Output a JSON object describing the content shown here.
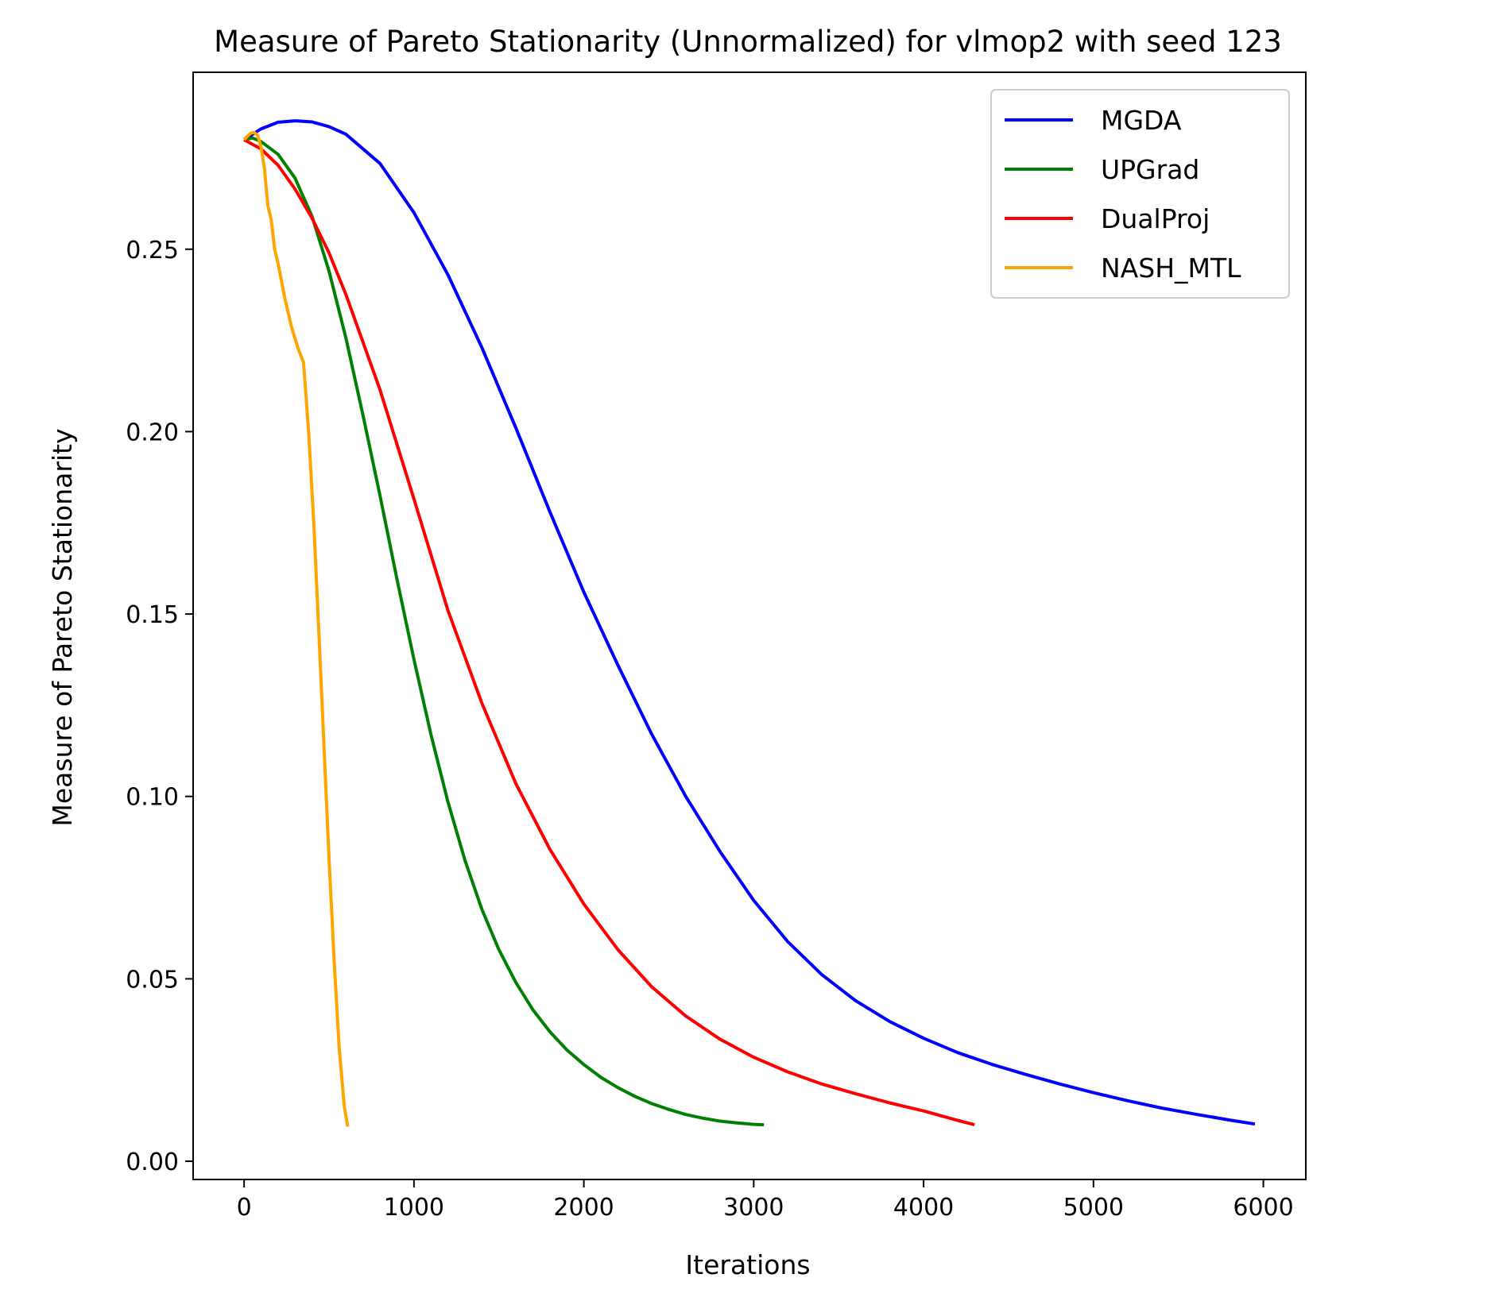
{
  "chart_data": {
    "type": "line",
    "title": "Measure of Pareto Stationarity (Unnormalized) for vlmop2 with seed 123",
    "xlabel": "Iterations",
    "ylabel": "Measure of Pareto Stationarity",
    "xlim": [
      -300,
      6250
    ],
    "ylim": [
      -0.005,
      0.2985
    ],
    "xticks": [
      0,
      1000,
      2000,
      3000,
      4000,
      5000,
      6000
    ],
    "xtick_labels": [
      "0",
      "1000",
      "2000",
      "3000",
      "4000",
      "5000",
      "6000"
    ],
    "yticks": [
      0.0,
      0.05,
      0.1,
      0.15,
      0.2,
      0.25
    ],
    "ytick_labels": [
      "0.00",
      "0.05",
      "0.10",
      "0.15",
      "0.20",
      "0.25"
    ],
    "grid": false,
    "legend_position": "top-right",
    "series": [
      {
        "name": "MGDA",
        "color": "#0000ff",
        "x": [
          0,
          100,
          200,
          300,
          400,
          500,
          600,
          800,
          1000,
          1200,
          1400,
          1600,
          1800,
          2000,
          2200,
          2400,
          2600,
          2800,
          3000,
          3200,
          3400,
          3600,
          3800,
          4000,
          4200,
          4400,
          4600,
          4800,
          5000,
          5200,
          5400,
          5600,
          5800,
          5950
        ],
        "y": [
          0.28,
          0.283,
          0.2848,
          0.2852,
          0.2849,
          0.2836,
          0.2815,
          0.2735,
          0.26,
          0.243,
          0.223,
          0.201,
          0.178,
          0.156,
          0.136,
          0.117,
          0.1,
          0.085,
          0.0715,
          0.0602,
          0.0512,
          0.044,
          0.0383,
          0.0337,
          0.0298,
          0.0266,
          0.0238,
          0.0212,
          0.0188,
          0.0166,
          0.0146,
          0.0129,
          0.0113,
          0.0102
        ]
      },
      {
        "name": "UPGrad",
        "color": "#008000",
        "x": [
          0,
          50,
          100,
          200,
          300,
          400,
          500,
          600,
          700,
          800,
          900,
          1000,
          1100,
          1200,
          1300,
          1400,
          1500,
          1600,
          1700,
          1800,
          1900,
          2000,
          2100,
          2200,
          2300,
          2400,
          2500,
          2600,
          2700,
          2800,
          2900,
          3000,
          3060
        ],
        "y": [
          0.28,
          0.2805,
          0.2795,
          0.276,
          0.2695,
          0.259,
          0.244,
          0.2255,
          0.2045,
          0.1825,
          0.1595,
          0.1375,
          0.117,
          0.0985,
          0.0825,
          0.069,
          0.058,
          0.049,
          0.0415,
          0.0355,
          0.0305,
          0.0265,
          0.023,
          0.0202,
          0.0178,
          0.0158,
          0.0142,
          0.0128,
          0.0118,
          0.011,
          0.0105,
          0.0101,
          0.01
        ]
      },
      {
        "name": "DualProj",
        "color": "#ff0000",
        "x": [
          0,
          100,
          200,
          300,
          400,
          500,
          600,
          800,
          1000,
          1200,
          1400,
          1600,
          1800,
          2000,
          2200,
          2400,
          2600,
          2800,
          3000,
          3200,
          3400,
          3600,
          3800,
          4000,
          4200,
          4300
        ],
        "y": [
          0.28,
          0.2775,
          0.273,
          0.2665,
          0.2585,
          0.249,
          0.2375,
          0.2115,
          0.1815,
          0.151,
          0.1255,
          0.1035,
          0.0855,
          0.0705,
          0.058,
          0.0478,
          0.0398,
          0.0335,
          0.0285,
          0.0245,
          0.0212,
          0.0185,
          0.016,
          0.0138,
          0.0112,
          0.01
        ]
      },
      {
        "name": "NASH_MTL",
        "color": "#ffa500",
        "x": [
          0,
          20,
          40,
          60,
          80,
          100,
          120,
          140,
          160,
          180,
          200,
          240,
          280,
          320,
          350,
          380,
          410,
          440,
          470,
          500,
          530,
          560,
          590,
          610
        ],
        "y": [
          0.28,
          0.281,
          0.2818,
          0.282,
          0.2812,
          0.278,
          0.272,
          0.262,
          0.258,
          0.25,
          0.246,
          0.2365,
          0.2285,
          0.2225,
          0.219,
          0.2,
          0.175,
          0.145,
          0.114,
          0.083,
          0.055,
          0.031,
          0.015,
          0.0095
        ]
      }
    ]
  }
}
